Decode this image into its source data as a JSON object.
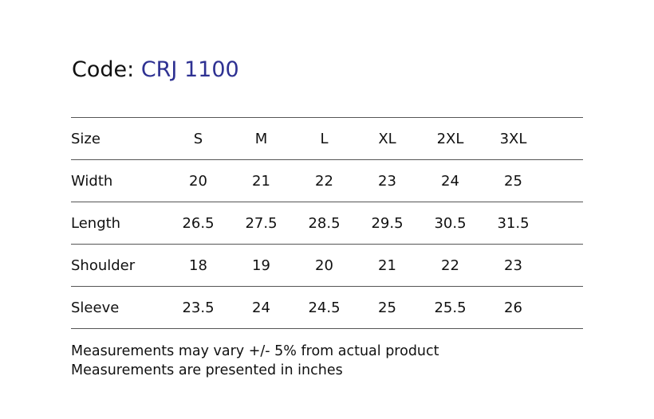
{
  "title": {
    "label": "Code:",
    "code": "CRJ 1100"
  },
  "table": {
    "header": [
      "Size",
      "S",
      "M",
      "L",
      "XL",
      "2XL",
      "3XL"
    ],
    "rows": [
      [
        "Width",
        "20",
        "21",
        "22",
        "23",
        "24",
        "25"
      ],
      [
        "Length",
        "26.5",
        "27.5",
        "28.5",
        "29.5",
        "30.5",
        "31.5"
      ],
      [
        "Shoulder",
        "18",
        "19",
        "20",
        "21",
        "22",
        "23"
      ],
      [
        "Sleeve",
        "23.5",
        "24",
        "24.5",
        "25",
        "25.5",
        "26"
      ]
    ]
  },
  "notes": [
    "Measurements may vary +/- 5% from actual product",
    "Measurements are presented in inches"
  ]
}
